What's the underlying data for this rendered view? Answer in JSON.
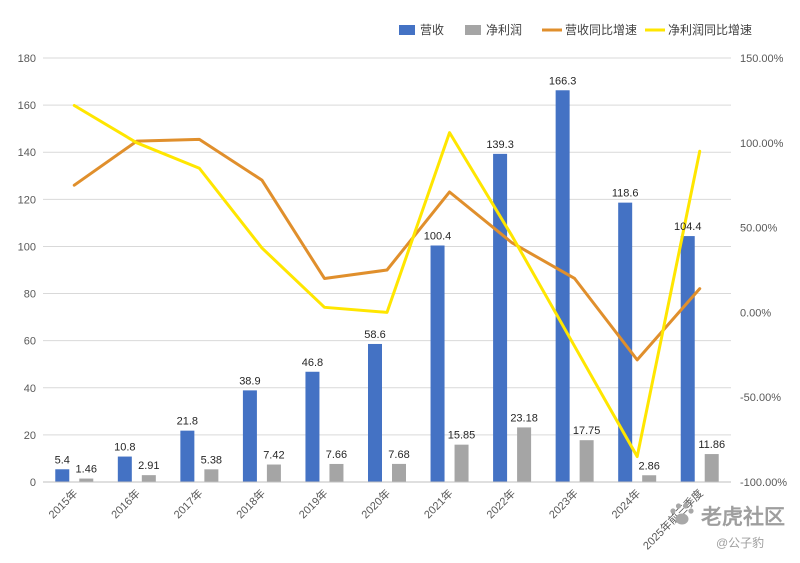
{
  "chart_data": {
    "type": "bar",
    "categories": [
      "2015年",
      "2016年",
      "2017年",
      "2018年",
      "2019年",
      "2020年",
      "2021年",
      "2022年",
      "2023年",
      "2024年",
      "2025年前三季度"
    ],
    "series": [
      {
        "name": "营收",
        "kind": "bar",
        "axis": "left",
        "color": "#4472c4",
        "values": [
          5.4,
          10.8,
          21.8,
          38.9,
          46.8,
          58.6,
          100.4,
          139.3,
          166.3,
          118.6,
          104.4
        ],
        "labels": [
          "5.4",
          "10.8",
          "21.8",
          "38.9",
          "46.8",
          "58.6",
          "100.4",
          "139.3",
          "166.3",
          "118.6",
          "104.4"
        ]
      },
      {
        "name": "净利润",
        "kind": "bar",
        "axis": "left",
        "color": "#a5a5a5",
        "values": [
          1.46,
          2.91,
          5.38,
          7.42,
          7.66,
          7.68,
          15.85,
          23.18,
          17.75,
          2.86,
          11.86
        ],
        "labels": [
          "1.46",
          "2.91",
          "5.38",
          "7.42",
          "7.66",
          "7.68",
          "15.85",
          "23.18",
          "17.75",
          "2.86",
          "11.86"
        ]
      },
      {
        "name": "营收同比增速",
        "kind": "line",
        "axis": "right",
        "color": "#e08f2c",
        "values": [
          75,
          101,
          102,
          78,
          20,
          25,
          71,
          41,
          20,
          -28,
          14
        ]
      },
      {
        "name": "净利润同比增速",
        "kind": "line",
        "axis": "right",
        "color": "#ffe600",
        "values": [
          122,
          100,
          85,
          38,
          3,
          0,
          106,
          45,
          -20,
          -85,
          95
        ]
      }
    ],
    "y_left": {
      "min": 0,
      "max": 180,
      "ticks": [
        "0",
        "20",
        "40",
        "60",
        "80",
        "100",
        "120",
        "140",
        "160",
        "180"
      ]
    },
    "y_right": {
      "min": -100,
      "max": 150,
      "ticks": [
        "-100.00%",
        "-50.00%",
        "0.00%",
        "50.00%",
        "100.00%",
        "150.00%"
      ],
      "tick_values": [
        -100,
        -50,
        0,
        50,
        100,
        150
      ]
    },
    "grid": true,
    "legend_position": "top-right"
  },
  "watermark": {
    "brand": "老虎社区",
    "handle": "@公子豹",
    "icon": "paw-icon"
  }
}
